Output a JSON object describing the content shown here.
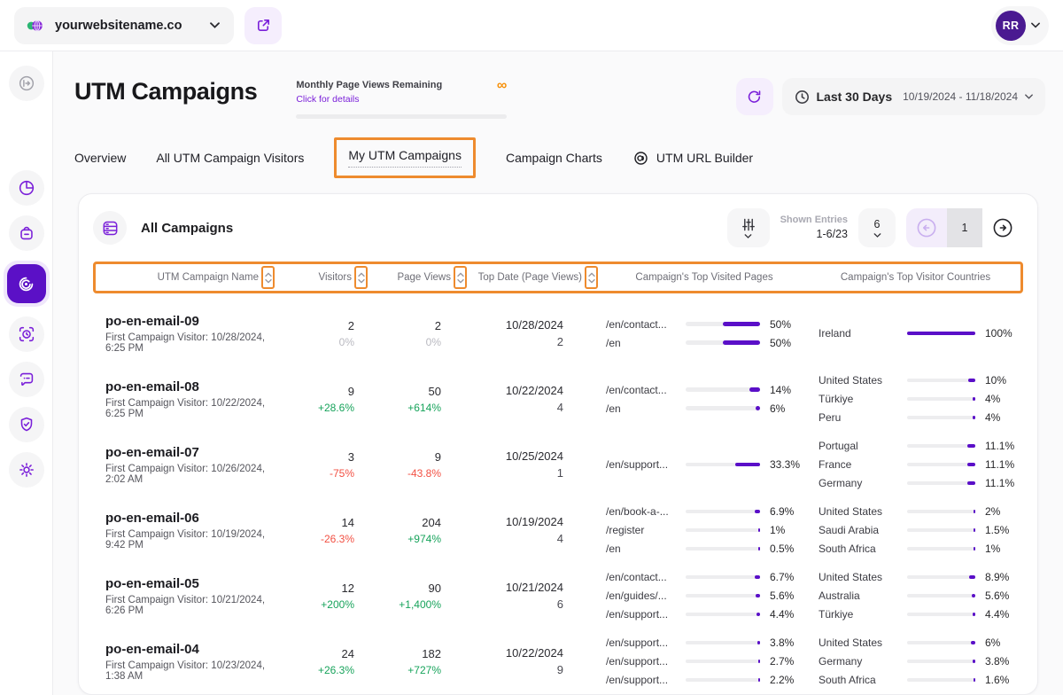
{
  "colors": {
    "accent": "#7A1FD9",
    "bar_fill": "#5A0FC8",
    "highlight": "#EE8B2E",
    "positive": "#17A35B",
    "negative": "#F25043",
    "infinity": "#F79009"
  },
  "topbar": {
    "website": "yourwebsitename.co",
    "avatar": "RR"
  },
  "header": {
    "title": "UTM Campaigns",
    "quota_label": "Monthly Page Views Remaining",
    "quota_link": "Click for details",
    "quota_value": "∞",
    "date_range_label": "Last 30 Days",
    "date_range_value": "10/19/2024 - 11/18/2024"
  },
  "tabs": [
    {
      "label": "Overview"
    },
    {
      "label": "All UTM Campaign Visitors"
    },
    {
      "label": "My UTM Campaigns",
      "active": true
    },
    {
      "label": "Campaign Charts"
    },
    {
      "label": "UTM URL Builder"
    }
  ],
  "table": {
    "title": "All Campaigns",
    "shown_entries_label": "Shown Entries",
    "shown_entries_value": "1-6/23",
    "page_size": "6",
    "current_page": "1",
    "columns": [
      "UTM Campaign Name",
      "Visitors",
      "Page Views",
      "Top Date (Page Views)",
      "Campaign's Top Visited Pages",
      "Campaign's Top Visitor Countries"
    ],
    "rows": [
      {
        "name": "po-en-email-09",
        "subtitle": "First Campaign Visitor: 10/28/2024, 6:25 PM",
        "visitors": {
          "count": "2",
          "change": "0%",
          "trend": "flat"
        },
        "page_views": {
          "count": "2",
          "change": "0%",
          "trend": "flat"
        },
        "top_date": {
          "date": "10/28/2024",
          "views": "2"
        },
        "top_pages": [
          {
            "label": "/en/contact...",
            "pct": "50%",
            "value": 50
          },
          {
            "label": "/en",
            "pct": "50%",
            "value": 50
          }
        ],
        "top_countries": [
          {
            "label": "Ireland",
            "pct": "100%",
            "value": 100
          }
        ]
      },
      {
        "name": "po-en-email-08",
        "subtitle": "First Campaign Visitor: 10/22/2024, 6:25 PM",
        "visitors": {
          "count": "9",
          "change": "+28.6%",
          "trend": "up"
        },
        "page_views": {
          "count": "50",
          "change": "+614%",
          "trend": "up"
        },
        "top_date": {
          "date": "10/22/2024",
          "views": "4"
        },
        "top_pages": [
          {
            "label": "/en/contact...",
            "pct": "14%",
            "value": 14
          },
          {
            "label": "/en",
            "pct": "6%",
            "value": 6
          }
        ],
        "top_countries": [
          {
            "label": "United States",
            "pct": "10%",
            "value": 10
          },
          {
            "label": "Türkiye",
            "pct": "4%",
            "value": 4
          },
          {
            "label": "Peru",
            "pct": "4%",
            "value": 4
          }
        ]
      },
      {
        "name": "po-en-email-07",
        "subtitle": "First Campaign Visitor: 10/26/2024, 2:02 AM",
        "visitors": {
          "count": "3",
          "change": "-75%",
          "trend": "down"
        },
        "page_views": {
          "count": "9",
          "change": "-43.8%",
          "trend": "down"
        },
        "top_date": {
          "date": "10/25/2024",
          "views": "1"
        },
        "top_pages": [
          {
            "label": "/en/support...",
            "pct": "33.3%",
            "value": 33.3
          }
        ],
        "top_countries": [
          {
            "label": "Portugal",
            "pct": "11.1%",
            "value": 11.1
          },
          {
            "label": "France",
            "pct": "11.1%",
            "value": 11.1
          },
          {
            "label": "Germany",
            "pct": "11.1%",
            "value": 11.1
          }
        ]
      },
      {
        "name": "po-en-email-06",
        "subtitle": "First Campaign Visitor: 10/19/2024, 9:42 PM",
        "visitors": {
          "count": "14",
          "change": "-26.3%",
          "trend": "down"
        },
        "page_views": {
          "count": "204",
          "change": "+974%",
          "trend": "up"
        },
        "top_date": {
          "date": "10/19/2024",
          "views": "4"
        },
        "top_pages": [
          {
            "label": "/en/book-a-...",
            "pct": "6.9%",
            "value": 6.9
          },
          {
            "label": "/register",
            "pct": "1%",
            "value": 1
          },
          {
            "label": "/en",
            "pct": "0.5%",
            "value": 0.5
          }
        ],
        "top_countries": [
          {
            "label": "United States",
            "pct": "2%",
            "value": 2
          },
          {
            "label": "Saudi Arabia",
            "pct": "1.5%",
            "value": 1.5
          },
          {
            "label": "South Africa",
            "pct": "1%",
            "value": 1
          }
        ]
      },
      {
        "name": "po-en-email-05",
        "subtitle": "First Campaign Visitor: 10/21/2024, 6:26 PM",
        "visitors": {
          "count": "12",
          "change": "+200%",
          "trend": "up"
        },
        "page_views": {
          "count": "90",
          "change": "+1,400%",
          "trend": "up"
        },
        "top_date": {
          "date": "10/21/2024",
          "views": "6"
        },
        "top_pages": [
          {
            "label": "/en/contact...",
            "pct": "6.7%",
            "value": 6.7
          },
          {
            "label": "/en/guides/...",
            "pct": "5.6%",
            "value": 5.6
          },
          {
            "label": "/en/support...",
            "pct": "4.4%",
            "value": 4.4
          }
        ],
        "top_countries": [
          {
            "label": "United States",
            "pct": "8.9%",
            "value": 8.9
          },
          {
            "label": "Australia",
            "pct": "5.6%",
            "value": 5.6
          },
          {
            "label": "Türkiye",
            "pct": "4.4%",
            "value": 4.4
          }
        ]
      },
      {
        "name": "po-en-email-04",
        "subtitle": "First Campaign Visitor: 10/23/2024, 1:38 AM",
        "visitors": {
          "count": "24",
          "change": "+26.3%",
          "trend": "up"
        },
        "page_views": {
          "count": "182",
          "change": "+727%",
          "trend": "up"
        },
        "top_date": {
          "date": "10/22/2024",
          "views": "9"
        },
        "top_pages": [
          {
            "label": "/en/support...",
            "pct": "3.8%",
            "value": 3.8
          },
          {
            "label": "/en/support...",
            "pct": "2.7%",
            "value": 2.7
          },
          {
            "label": "/en/support...",
            "pct": "2.2%",
            "value": 2.2
          }
        ],
        "top_countries": [
          {
            "label": "United States",
            "pct": "6%",
            "value": 6
          },
          {
            "label": "Germany",
            "pct": "3.8%",
            "value": 3.8
          },
          {
            "label": "South Africa",
            "pct": "1.6%",
            "value": 1.6
          }
        ]
      }
    ]
  }
}
